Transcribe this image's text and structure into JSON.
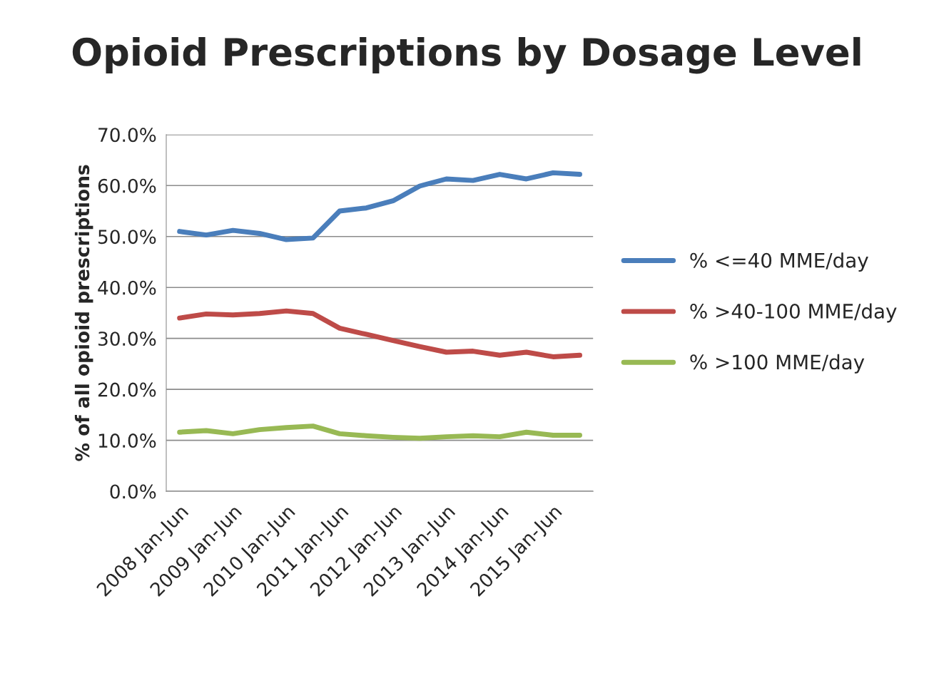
{
  "chart_data": {
    "type": "line",
    "title": "Opioid Prescriptions by Dosage Level",
    "ylabel": "% of all opioid prescriptions",
    "categories": [
      "2008 Jan-Jun",
      null,
      "2009 Jan-Jun",
      null,
      "2010 Jan-Jun",
      null,
      "2011 Jan-Jun",
      null,
      "2012 Jan-Jun",
      null,
      "2013 Jan-Jun",
      null,
      "2014 Jan-Jun",
      null,
      "2015 Jan-Jun",
      null
    ],
    "series": [
      {
        "name": "% <=40 MME/day",
        "color": "#4a7ebb",
        "values": [
          51.0,
          50.3,
          51.2,
          50.6,
          49.4,
          49.7,
          55.0,
          55.6,
          57.0,
          59.9,
          61.3,
          61.0,
          62.2,
          61.3,
          62.5,
          62.2
        ]
      },
      {
        "name": "% >40-100 MME/day",
        "color": "#be4b48",
        "values": [
          34.0,
          34.8,
          34.6,
          34.9,
          35.4,
          34.9,
          32.0,
          30.8,
          29.6,
          28.4,
          27.3,
          27.5,
          26.7,
          27.3,
          26.4,
          26.7
        ]
      },
      {
        "name": "% >100 MME/day",
        "color": "#98b954",
        "values": [
          11.6,
          11.9,
          11.3,
          12.1,
          12.5,
          12.8,
          11.3,
          10.9,
          10.6,
          10.4,
          10.7,
          10.9,
          10.7,
          11.6,
          11.0,
          11.0
        ]
      }
    ],
    "ylim": [
      0,
      70
    ],
    "yticks": [
      {
        "value": 0,
        "label": "0.0%"
      },
      {
        "value": 10,
        "label": "10.0%"
      },
      {
        "value": 20,
        "label": "20.0%"
      },
      {
        "value": 30,
        "label": "30.0%"
      },
      {
        "value": 40,
        "label": "40.0%"
      },
      {
        "value": 50,
        "label": "50.0%"
      },
      {
        "value": 60,
        "label": "60.0%"
      },
      {
        "value": 70,
        "label": "70.0%"
      }
    ],
    "grid": "y",
    "legend": "right",
    "marker": "none",
    "line_style": "solid"
  }
}
